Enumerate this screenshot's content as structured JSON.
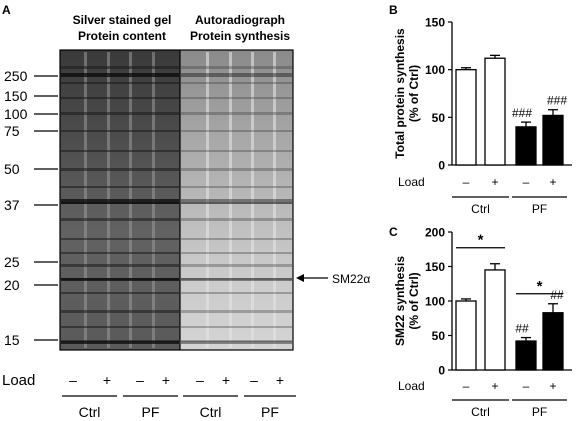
{
  "panels": {
    "a": "A",
    "b": "B",
    "c": "C"
  },
  "gel": {
    "left_title": [
      "Silver stained gel",
      "Protein content"
    ],
    "right_title": [
      "Autoradiograph",
      "Protein synthesis"
    ],
    "mw_markers": [
      "250",
      "150",
      "100",
      "75",
      "50",
      "37",
      "25",
      "20",
      "15"
    ],
    "arrow_label": "SM22α",
    "load_label": "Load",
    "load_marks": [
      "–",
      "+",
      "–",
      "+",
      "–",
      "+",
      "–",
      "+"
    ],
    "groups": [
      "Ctrl",
      "PF",
      "Ctrl",
      "PF"
    ]
  },
  "chart_data": [
    {
      "type": "bar",
      "panel": "B",
      "ylabel": "Total protein synthesis (% of Ctrl)",
      "ylim": [
        0,
        150
      ],
      "yticks": [
        "0",
        "50",
        "100",
        "150"
      ],
      "load_label": "Load",
      "load": [
        "–",
        "+",
        "–",
        "+"
      ],
      "groups": [
        "Ctrl",
        "PF"
      ],
      "values": [
        100,
        112,
        40,
        52
      ],
      "errors": [
        2,
        3,
        5,
        6
      ],
      "fills": [
        "#ffffff",
        "#ffffff",
        "#000000",
        "#000000"
      ],
      "annotations": [
        "",
        "",
        "###",
        "###"
      ],
      "significance_bars": []
    },
    {
      "type": "bar",
      "panel": "C",
      "ylabel": "SM22 synthesis (% of Ctrl)",
      "ylim": [
        0,
        200
      ],
      "yticks": [
        "0",
        "50",
        "100",
        "150",
        "200"
      ],
      "load_label": "Load",
      "load": [
        "–",
        "+",
        "–",
        "+"
      ],
      "groups": [
        "Ctrl",
        "PF"
      ],
      "values": [
        100,
        145,
        42,
        83
      ],
      "errors": [
        3,
        9,
        5,
        13
      ],
      "fills": [
        "#ffffff",
        "#ffffff",
        "#000000",
        "#000000"
      ],
      "annotations": [
        "",
        "",
        "##",
        "##"
      ],
      "significance_bars": [
        {
          "from": 0,
          "to": 1,
          "label": "*"
        },
        {
          "from": 2,
          "to": 3,
          "label": "*"
        }
      ]
    }
  ]
}
